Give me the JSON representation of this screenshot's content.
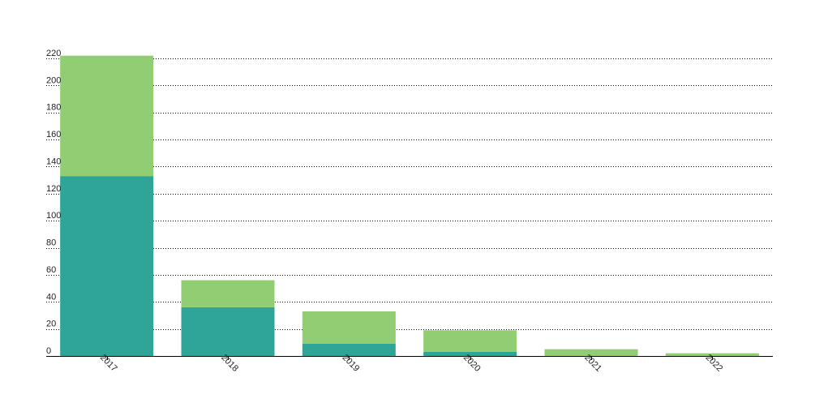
{
  "chart_data": {
    "type": "bar",
    "stacked": true,
    "categories": [
      "2017",
      "2018",
      "2019",
      "2020",
      "2021",
      "2022"
    ],
    "series": [
      {
        "values": [
          133,
          36,
          9,
          3,
          0,
          0
        ],
        "color": "#2fa598"
      },
      {
        "values": [
          89,
          20,
          24,
          16,
          5,
          2
        ],
        "color": "#91cd72"
      }
    ],
    "yticks": [
      0,
      20,
      40,
      60,
      80,
      100,
      120,
      140,
      160,
      180,
      200,
      220
    ],
    "ylim": [
      0,
      220
    ],
    "grid": true,
    "grid_style": "dotted",
    "x_tick_rotation": "rotated 45 degrees clockwise",
    "title": "",
    "xlabel": "",
    "ylabel": ""
  }
}
